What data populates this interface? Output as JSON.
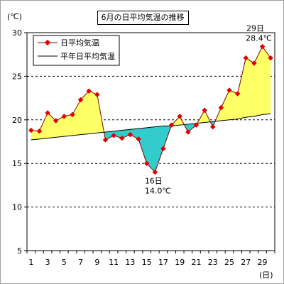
{
  "chart_data": {
    "type": "line",
    "title": "6月の日平均気温の推移",
    "ylabel": "(℃)",
    "xlabel": "(日)",
    "ylim": [
      5,
      30
    ],
    "yticks": [
      5,
      10,
      15,
      20,
      25,
      30
    ],
    "xlim": [
      0.5,
      30.5
    ],
    "x": [
      1,
      2,
      3,
      4,
      5,
      6,
      7,
      8,
      9,
      10,
      11,
      12,
      13,
      14,
      15,
      16,
      17,
      18,
      19,
      20,
      21,
      22,
      23,
      24,
      25,
      26,
      27,
      28,
      29,
      30
    ],
    "xtick_labels": [
      1,
      3,
      5,
      7,
      9,
      11,
      13,
      15,
      17,
      19,
      21,
      23,
      25,
      27,
      29
    ],
    "series": [
      {
        "name": "日平均気温",
        "marker": "diamond",
        "color": "#e00000",
        "line_color": "#800000",
        "values": [
          18.8,
          18.7,
          20.8,
          19.9,
          20.4,
          20.6,
          22.3,
          23.3,
          22.9,
          17.7,
          18.2,
          17.9,
          18.3,
          17.8,
          15.0,
          14.0,
          16.7,
          19.4,
          20.4,
          18.6,
          19.4,
          21.1,
          19.2,
          21.4,
          23.4,
          23.0,
          27.1,
          26.5,
          28.4,
          27.1
        ]
      },
      {
        "name": "平年日平均気温",
        "color": "#000000",
        "values": [
          17.7,
          17.8,
          17.9,
          18.0,
          18.1,
          18.2,
          18.3,
          18.4,
          18.5,
          18.6,
          18.7,
          18.8,
          18.9,
          19.0,
          19.1,
          19.2,
          19.3,
          19.3,
          19.4,
          19.5,
          19.6,
          19.7,
          19.8,
          19.9,
          20.0,
          20.1,
          20.3,
          20.4,
          20.6,
          20.7
        ]
      }
    ],
    "fill_above_color": "#ffff66",
    "fill_below_color": "#33cccc",
    "grid": {
      "horizontal": true,
      "style": "dashed"
    },
    "legend": "top-left",
    "annotations": [
      {
        "x": 16,
        "y": 14.0,
        "lines": [
          "16日",
          "14.0℃"
        ],
        "position": "below"
      },
      {
        "x": 29,
        "y": 28.4,
        "lines": [
          "29日",
          "28.4℃"
        ],
        "position": "above"
      }
    ]
  }
}
